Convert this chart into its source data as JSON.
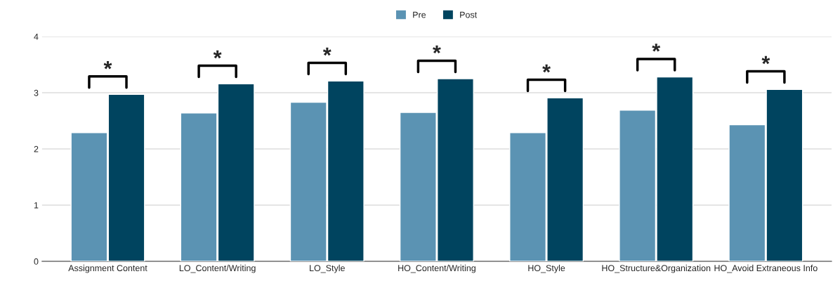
{
  "chart_data": {
    "type": "bar",
    "categories": [
      "Assignment Content",
      "LO_Content/Writing",
      "LO_Style",
      "HO_Content/Writing",
      "HO_Style",
      "HO_Structure&Organization",
      "HO_Avoid Extraneous Info"
    ],
    "series": [
      {
        "name": "Pre",
        "color": "#5b93b3",
        "values": [
          2.29,
          2.64,
          2.83,
          2.65,
          2.29,
          2.69,
          2.43
        ]
      },
      {
        "name": "Post",
        "color": "#00445f",
        "values": [
          2.97,
          3.16,
          3.21,
          3.25,
          2.91,
          3.28,
          3.06
        ]
      }
    ],
    "ylim": [
      0,
      4
    ],
    "yticks": [
      0,
      1,
      2,
      3,
      4
    ],
    "grid": "y",
    "legend": "top",
    "annotations": [
      "*",
      "*",
      "*",
      "*",
      "*",
      "*",
      "*"
    ]
  }
}
